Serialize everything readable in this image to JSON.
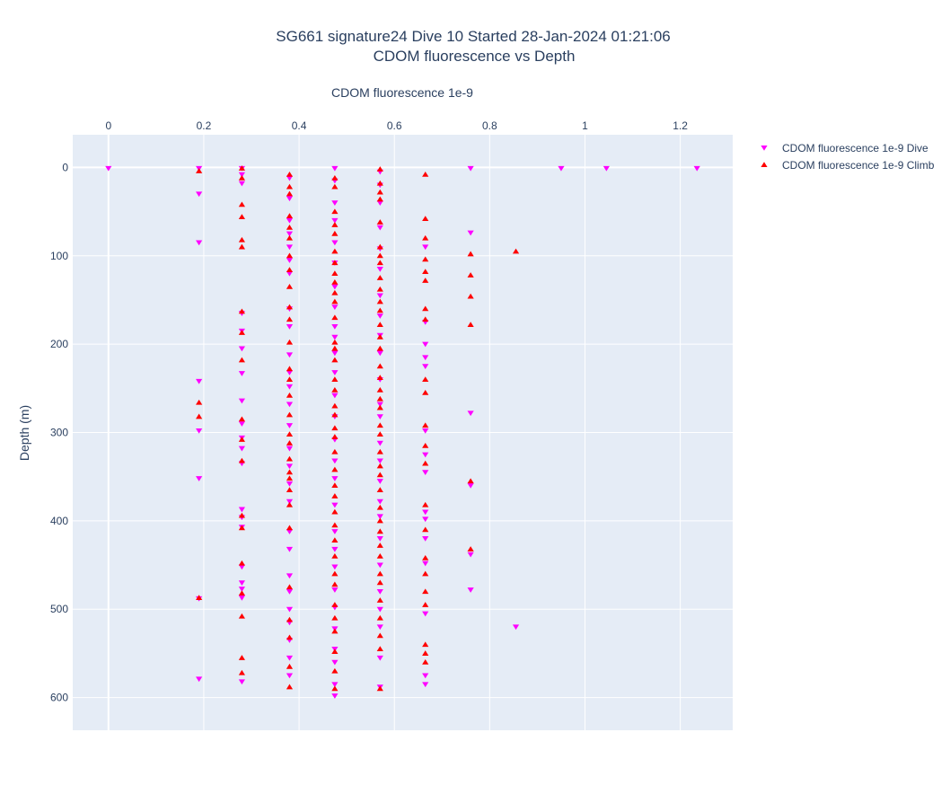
{
  "chart_data": {
    "type": "scatter",
    "title_line1": "SG661 signature24 Dive 10 Started 28-Jan-2024 01:21:06",
    "title_line2": "CDOM fluorescence vs Depth",
    "xlabel": "CDOM fluorescence 1e-9",
    "ylabel": "Depth (m)",
    "x_axis_side": "top",
    "y_reversed": true,
    "xlim": [
      -0.075,
      1.31
    ],
    "ylim": [
      -37,
      637
    ],
    "x_ticks": [
      0,
      0.2,
      0.4,
      0.6,
      0.8,
      1,
      1.2
    ],
    "x_tick_labels": [
      "0",
      "0.2",
      "0.4",
      "0.6",
      "0.8",
      "1",
      "1.2"
    ],
    "y_ticks": [
      0,
      100,
      200,
      300,
      400,
      500,
      600
    ],
    "y_tick_labels": [
      "0",
      "100",
      "200",
      "300",
      "400",
      "500",
      "600"
    ],
    "grid": true,
    "legend_position": "top-right",
    "series": [
      {
        "name": "CDOM fluorescence 1e-9 Dive",
        "marker": "triangle-down",
        "color": "#ff00ff",
        "columns": [
          {
            "x": 0.0,
            "depths": [
              1
            ]
          },
          {
            "x": 0.19,
            "depths": [
              1,
              30,
              85,
              242,
              298,
              352,
              488,
              579
            ]
          },
          {
            "x": 0.28,
            "depths": [
              1,
              8,
              18,
              165,
              185,
              205,
              233,
              264,
              290,
              306,
              318,
              335,
              387,
              396,
              407,
              452,
              470,
              477,
              487,
              582
            ]
          },
          {
            "x": 0.38,
            "depths": [
              12,
              35,
              60,
              75,
              90,
              105,
              120,
              160,
              180,
              212,
              232,
              248,
              268,
              292,
              318,
              338,
              358,
              378,
              412,
              432,
              462,
              480,
              500,
              515,
              535,
              555,
              575
            ]
          },
          {
            "x": 0.475,
            "depths": [
              1,
              15,
              40,
              60,
              85,
              108,
              135,
              158,
              180,
              192,
              210,
              232,
              258,
              282,
              308,
              332,
              352,
              382,
              412,
              432,
              452,
              478,
              498,
              522,
              545,
              560,
              585,
              598
            ]
          },
          {
            "x": 0.57,
            "depths": [
              5,
              20,
              40,
              68,
              92,
              115,
              145,
              168,
              190,
              210,
              240,
              268,
              282,
              312,
              332,
              355,
              378,
              395,
              420,
              450,
              480,
              500,
              520,
              555,
              588
            ]
          },
          {
            "x": 0.665,
            "depths": [
              90,
              175,
              200,
              215,
              225,
              298,
              325,
              345,
              390,
              398,
              420,
              448,
              505,
              575,
              585
            ]
          },
          {
            "x": 0.76,
            "depths": [
              1,
              74,
              278,
              360,
              438,
              478
            ]
          },
          {
            "x": 0.855,
            "depths": [
              520
            ]
          },
          {
            "x": 0.95,
            "depths": [
              1
            ]
          },
          {
            "x": 1.045,
            "depths": [
              1
            ]
          },
          {
            "x": 1.235,
            "depths": [
              1
            ]
          }
        ]
      },
      {
        "name": "CDOM fluorescence 1e-9 Climb",
        "marker": "triangle-up",
        "color": "#ff0000",
        "columns": [
          {
            "x": 0.19,
            "depths": [
              4,
              266,
              282,
              487
            ]
          },
          {
            "x": 0.28,
            "depths": [
              1,
              12,
              42,
              56,
              82,
              90,
              163,
              187,
              218,
              285,
              308,
              332,
              394,
              408,
              448,
              482,
              508,
              555,
              572
            ]
          },
          {
            "x": 0.38,
            "depths": [
              8,
              22,
              30,
              55,
              68,
              80,
              100,
              116,
              135,
              158,
              172,
              198,
              228,
              240,
              258,
              280,
              302,
              312,
              330,
              345,
              352,
              365,
              382,
              408,
              475,
              512,
              532,
              565,
              588
            ]
          },
          {
            "x": 0.475,
            "depths": [
              12,
              22,
              50,
              65,
              75,
              95,
              108,
              120,
              130,
              142,
              152,
              170,
              198,
              205,
              218,
              240,
              252,
              270,
              280,
              295,
              305,
              322,
              342,
              360,
              372,
              390,
              405,
              422,
              440,
              460,
              472,
              495,
              510,
              525,
              548,
              570,
              590
            ]
          },
          {
            "x": 0.57,
            "depths": [
              2,
              18,
              28,
              36,
              62,
              90,
              100,
              108,
              125,
              138,
              152,
              162,
              178,
              192,
              205,
              225,
              238,
              252,
              262,
              272,
              292,
              302,
              322,
              338,
              348,
              365,
              385,
              400,
              412,
              428,
              440,
              460,
              470,
              490,
              510,
              530,
              545,
              590
            ]
          },
          {
            "x": 0.665,
            "depths": [
              8,
              58,
              80,
              104,
              118,
              128,
              160,
              172,
              240,
              255,
              292,
              315,
              335,
              382,
              410,
              442,
              460,
              480,
              495,
              540,
              550,
              560
            ]
          },
          {
            "x": 0.76,
            "depths": [
              98,
              122,
              146,
              178,
              355,
              432
            ]
          },
          {
            "x": 0.855,
            "depths": [
              95
            ]
          }
        ]
      }
    ]
  }
}
